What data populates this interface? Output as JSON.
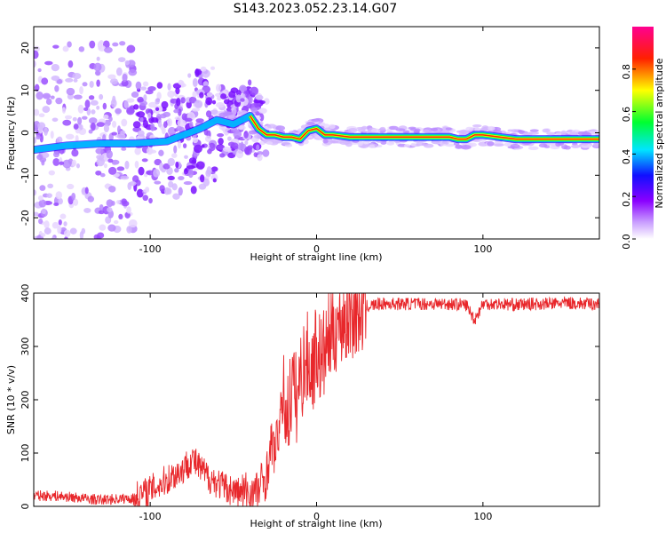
{
  "title": "S143.2023.052.23.14.G07",
  "chart_data": [
    {
      "type": "heatmap",
      "xlabel": "Height of straight line (km)",
      "ylabel": "Frequency (Hz)",
      "xlim": [
        -170,
        170
      ],
      "ylim": [
        -25,
        25
      ],
      "x_ticks": [
        -100,
        0,
        100
      ],
      "y_ticks": [
        -20,
        -10,
        0,
        10,
        20
      ],
      "grid": false,
      "colorbar": {
        "label": "Normalized spectral amplitude",
        "range": [
          0,
          1
        ],
        "ticks": [
          0.0,
          0.2,
          0.4,
          0.6,
          0.8
        ],
        "tick_labels": [
          "0.0",
          "0.2",
          "0.4",
          "0.6",
          "0.8"
        ],
        "colors": [
          "#ffffff",
          "#8a00ff",
          "#0000ff",
          "#00ffff",
          "#00ff00",
          "#ffff00",
          "#ff0000",
          "#ff0090"
        ]
      },
      "ridge": {
        "x": [
          -170,
          -150,
          -130,
          -110,
          -90,
          -70,
          -60,
          -50,
          -40,
          -35,
          -30,
          -25,
          -20,
          -15,
          -10,
          -5,
          0,
          5,
          10,
          20,
          40,
          60,
          80,
          85,
          90,
          95,
          100,
          110,
          120,
          140,
          170
        ],
        "y": [
          -4,
          -3,
          -2.5,
          -2.5,
          -2,
          1,
          3,
          2,
          4,
          1,
          -0.5,
          -0.5,
          -1,
          -1,
          -1.5,
          0.5,
          1,
          -0.5,
          -0.5,
          -1,
          -1,
          -1,
          -1,
          -1.5,
          -1.5,
          -0.5,
          -0.5,
          -1,
          -1.5,
          -1.5,
          -1.5
        ]
      }
    },
    {
      "type": "line",
      "xlabel": "Height of straight line (km)",
      "ylabel": "SNR (10 * v/v)",
      "xlim": [
        -170,
        170
      ],
      "ylim": [
        0,
        400
      ],
      "x_ticks": [
        -100,
        0,
        100
      ],
      "y_ticks": [
        0,
        100,
        200,
        300,
        400
      ],
      "grid": false,
      "series": [
        {
          "color": "#e8272b",
          "x": [
            -170,
            -160,
            -150,
            -140,
            -130,
            -120,
            -110,
            -100,
            -95,
            -90,
            -85,
            -80,
            -75,
            -70,
            -65,
            -60,
            -55,
            -50,
            -45,
            -40,
            -35,
            -30,
            -27,
            -25,
            -22,
            -20,
            -17,
            -15,
            -12,
            -10,
            -8,
            -5,
            -3,
            0,
            3,
            5,
            8,
            10,
            12,
            15,
            20,
            25,
            30,
            35,
            40,
            50,
            60,
            70,
            80,
            90,
            95,
            100,
            110,
            120,
            130,
            140,
            150,
            160,
            170
          ],
          "y": [
            20,
            20,
            18,
            15,
            12,
            14,
            15,
            30,
            40,
            50,
            60,
            70,
            90,
            70,
            55,
            45,
            35,
            30,
            25,
            22,
            30,
            60,
            120,
            100,
            160,
            200,
            170,
            230,
            200,
            240,
            260,
            280,
            250,
            300,
            270,
            290,
            320,
            330,
            340,
            350,
            360,
            370,
            375,
            378,
            380,
            380,
            380,
            380,
            380,
            378,
            350,
            380,
            380,
            378,
            380,
            380,
            382,
            380,
            380
          ]
        }
      ]
    }
  ]
}
